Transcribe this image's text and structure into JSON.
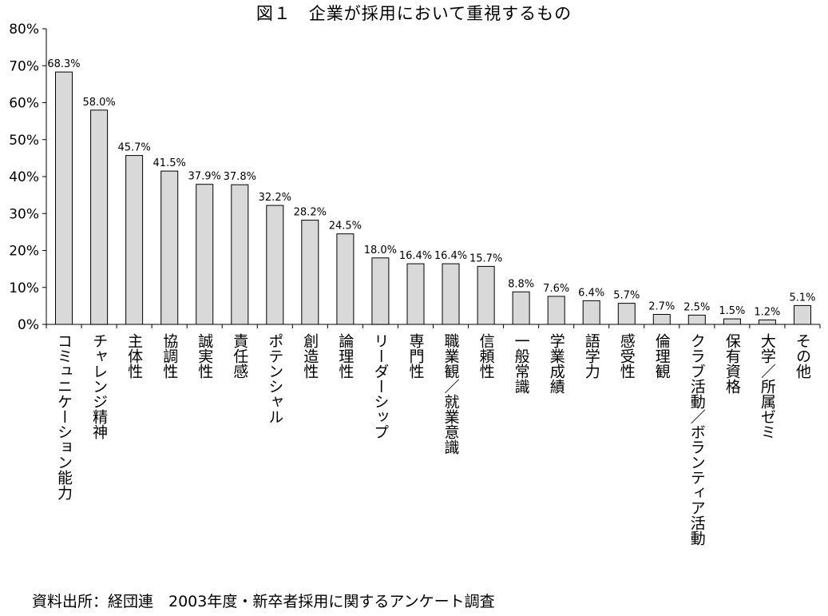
{
  "chart_data": {
    "type": "bar",
    "title": "図１　企業が採用において重視するもの",
    "source": "資料出所：経団連　2003年度・新卒者採用に関するアンケート調査",
    "categories": [
      "コミュニケーション能力",
      "チャレンジ精神",
      "主体性",
      "協調性",
      "誠実性",
      "責任感",
      "ポテンシャル",
      "創造性",
      "論理性",
      "リーダーシップ",
      "専門性",
      "職業観／就業意識",
      "信頼性",
      "一般常識",
      "学業成績",
      "語学力",
      "感受性",
      "倫理観",
      "クラブ活動／ボランティア活動",
      "保有資格",
      "大学／所属ゼミ",
      "その他"
    ],
    "values": [
      68.3,
      58.0,
      45.7,
      41.5,
      37.9,
      37.8,
      32.2,
      28.2,
      24.5,
      18.0,
      16.4,
      16.4,
      15.7,
      8.8,
      7.6,
      6.4,
      5.7,
      2.7,
      2.5,
      1.5,
      1.2,
      5.1
    ],
    "data_labels": [
      "68.3%",
      "58.0%",
      "45.7%",
      "41.5%",
      "37.9%",
      "37.8%",
      "32.2%",
      "28.2%",
      "24.5%",
      "18.0%",
      "16.4%",
      "16.4%",
      "15.7%",
      "8.8%",
      "7.6%",
      "6.4%",
      "5.7%",
      "2.7%",
      "2.5%",
      "1.5%",
      "1.2%",
      "5.1%"
    ],
    "yticks": [
      "0%",
      "10%",
      "20%",
      "30%",
      "40%",
      "50%",
      "60%",
      "70%",
      "80%"
    ],
    "ylim": [
      0,
      80
    ],
    "grid": false,
    "legend": "none",
    "bar_color": "#d9d9d9",
    "bar_edge_color": "#000000"
  }
}
